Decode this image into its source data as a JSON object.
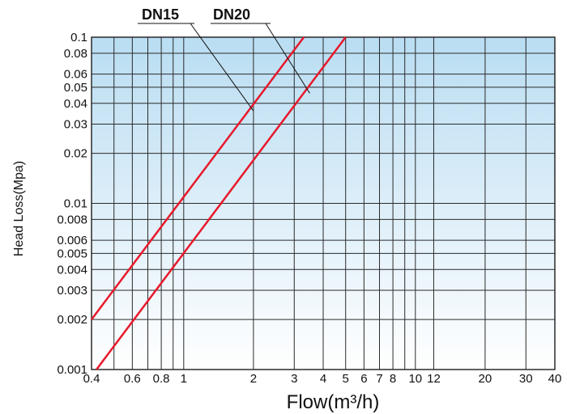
{
  "chart_data": {
    "type": "line",
    "xlabel": "Flow(m³/h)",
    "ylabel": "Head Loss(Mpa)",
    "x_scale": "log",
    "y_scale": "log",
    "xlim": [
      0.4,
      40
    ],
    "ylim": [
      0.001,
      0.1
    ],
    "grid": true,
    "x_gridlines": [
      0.4,
      0.5,
      0.6,
      0.7,
      0.8,
      0.9,
      1,
      2,
      3,
      4,
      5,
      6,
      7,
      8,
      9,
      10,
      12,
      20,
      30,
      40
    ],
    "x_ticks": [
      {
        "value": 0.4,
        "label": "0.4"
      },
      {
        "value": 0.6,
        "label": "0.6"
      },
      {
        "value": 0.8,
        "label": "0.8"
      },
      {
        "value": 1,
        "label": "1"
      },
      {
        "value": 2,
        "label": "2"
      },
      {
        "value": 3,
        "label": "3"
      },
      {
        "value": 4,
        "label": "4"
      },
      {
        "value": 5,
        "label": "5"
      },
      {
        "value": 6,
        "label": "6"
      },
      {
        "value": 7,
        "label": "7"
      },
      {
        "value": 8,
        "label": "8"
      },
      {
        "value": 10,
        "label": "10"
      },
      {
        "value": 12,
        "label": "12"
      },
      {
        "value": 20,
        "label": "20"
      },
      {
        "value": 30,
        "label": "30"
      },
      {
        "value": 40,
        "label": "40"
      }
    ],
    "y_ticks": [
      {
        "value": 0.001,
        "label": "0.001"
      },
      {
        "value": 0.002,
        "label": "0.002"
      },
      {
        "value": 0.003,
        "label": "0.003"
      },
      {
        "value": 0.004,
        "label": "0.004"
      },
      {
        "value": 0.005,
        "label": "0.005"
      },
      {
        "value": 0.006,
        "label": "0.006"
      },
      {
        "value": 0.008,
        "label": "0.008"
      },
      {
        "value": 0.01,
        "label": "0.01"
      },
      {
        "value": 0.02,
        "label": "0.02"
      },
      {
        "value": 0.03,
        "label": "0.03"
      },
      {
        "value": 0.04,
        "label": "0.04"
      },
      {
        "value": 0.05,
        "label": "0.05"
      },
      {
        "value": 0.06,
        "label": "0.06"
      },
      {
        "value": 0.08,
        "label": "0.08"
      },
      {
        "value": 0.1,
        "label": "0.1"
      }
    ],
    "series": [
      {
        "name": "DN15",
        "x": [
          0.4,
          3.3
        ],
        "y": [
          0.002,
          0.1
        ],
        "label_pointer_x": 2.0,
        "label_pointer_y": 0.036
      },
      {
        "name": "DN20",
        "x": [
          0.42,
          5.0
        ],
        "y": [
          0.001,
          0.1
        ],
        "label_pointer_x": 3.5,
        "label_pointer_y": 0.046
      }
    ],
    "colors": {
      "line": "#e8182b",
      "grid": "#2a2a2a",
      "bg_top": "#b9ddf2",
      "bg_bottom": "#ffffff"
    }
  }
}
